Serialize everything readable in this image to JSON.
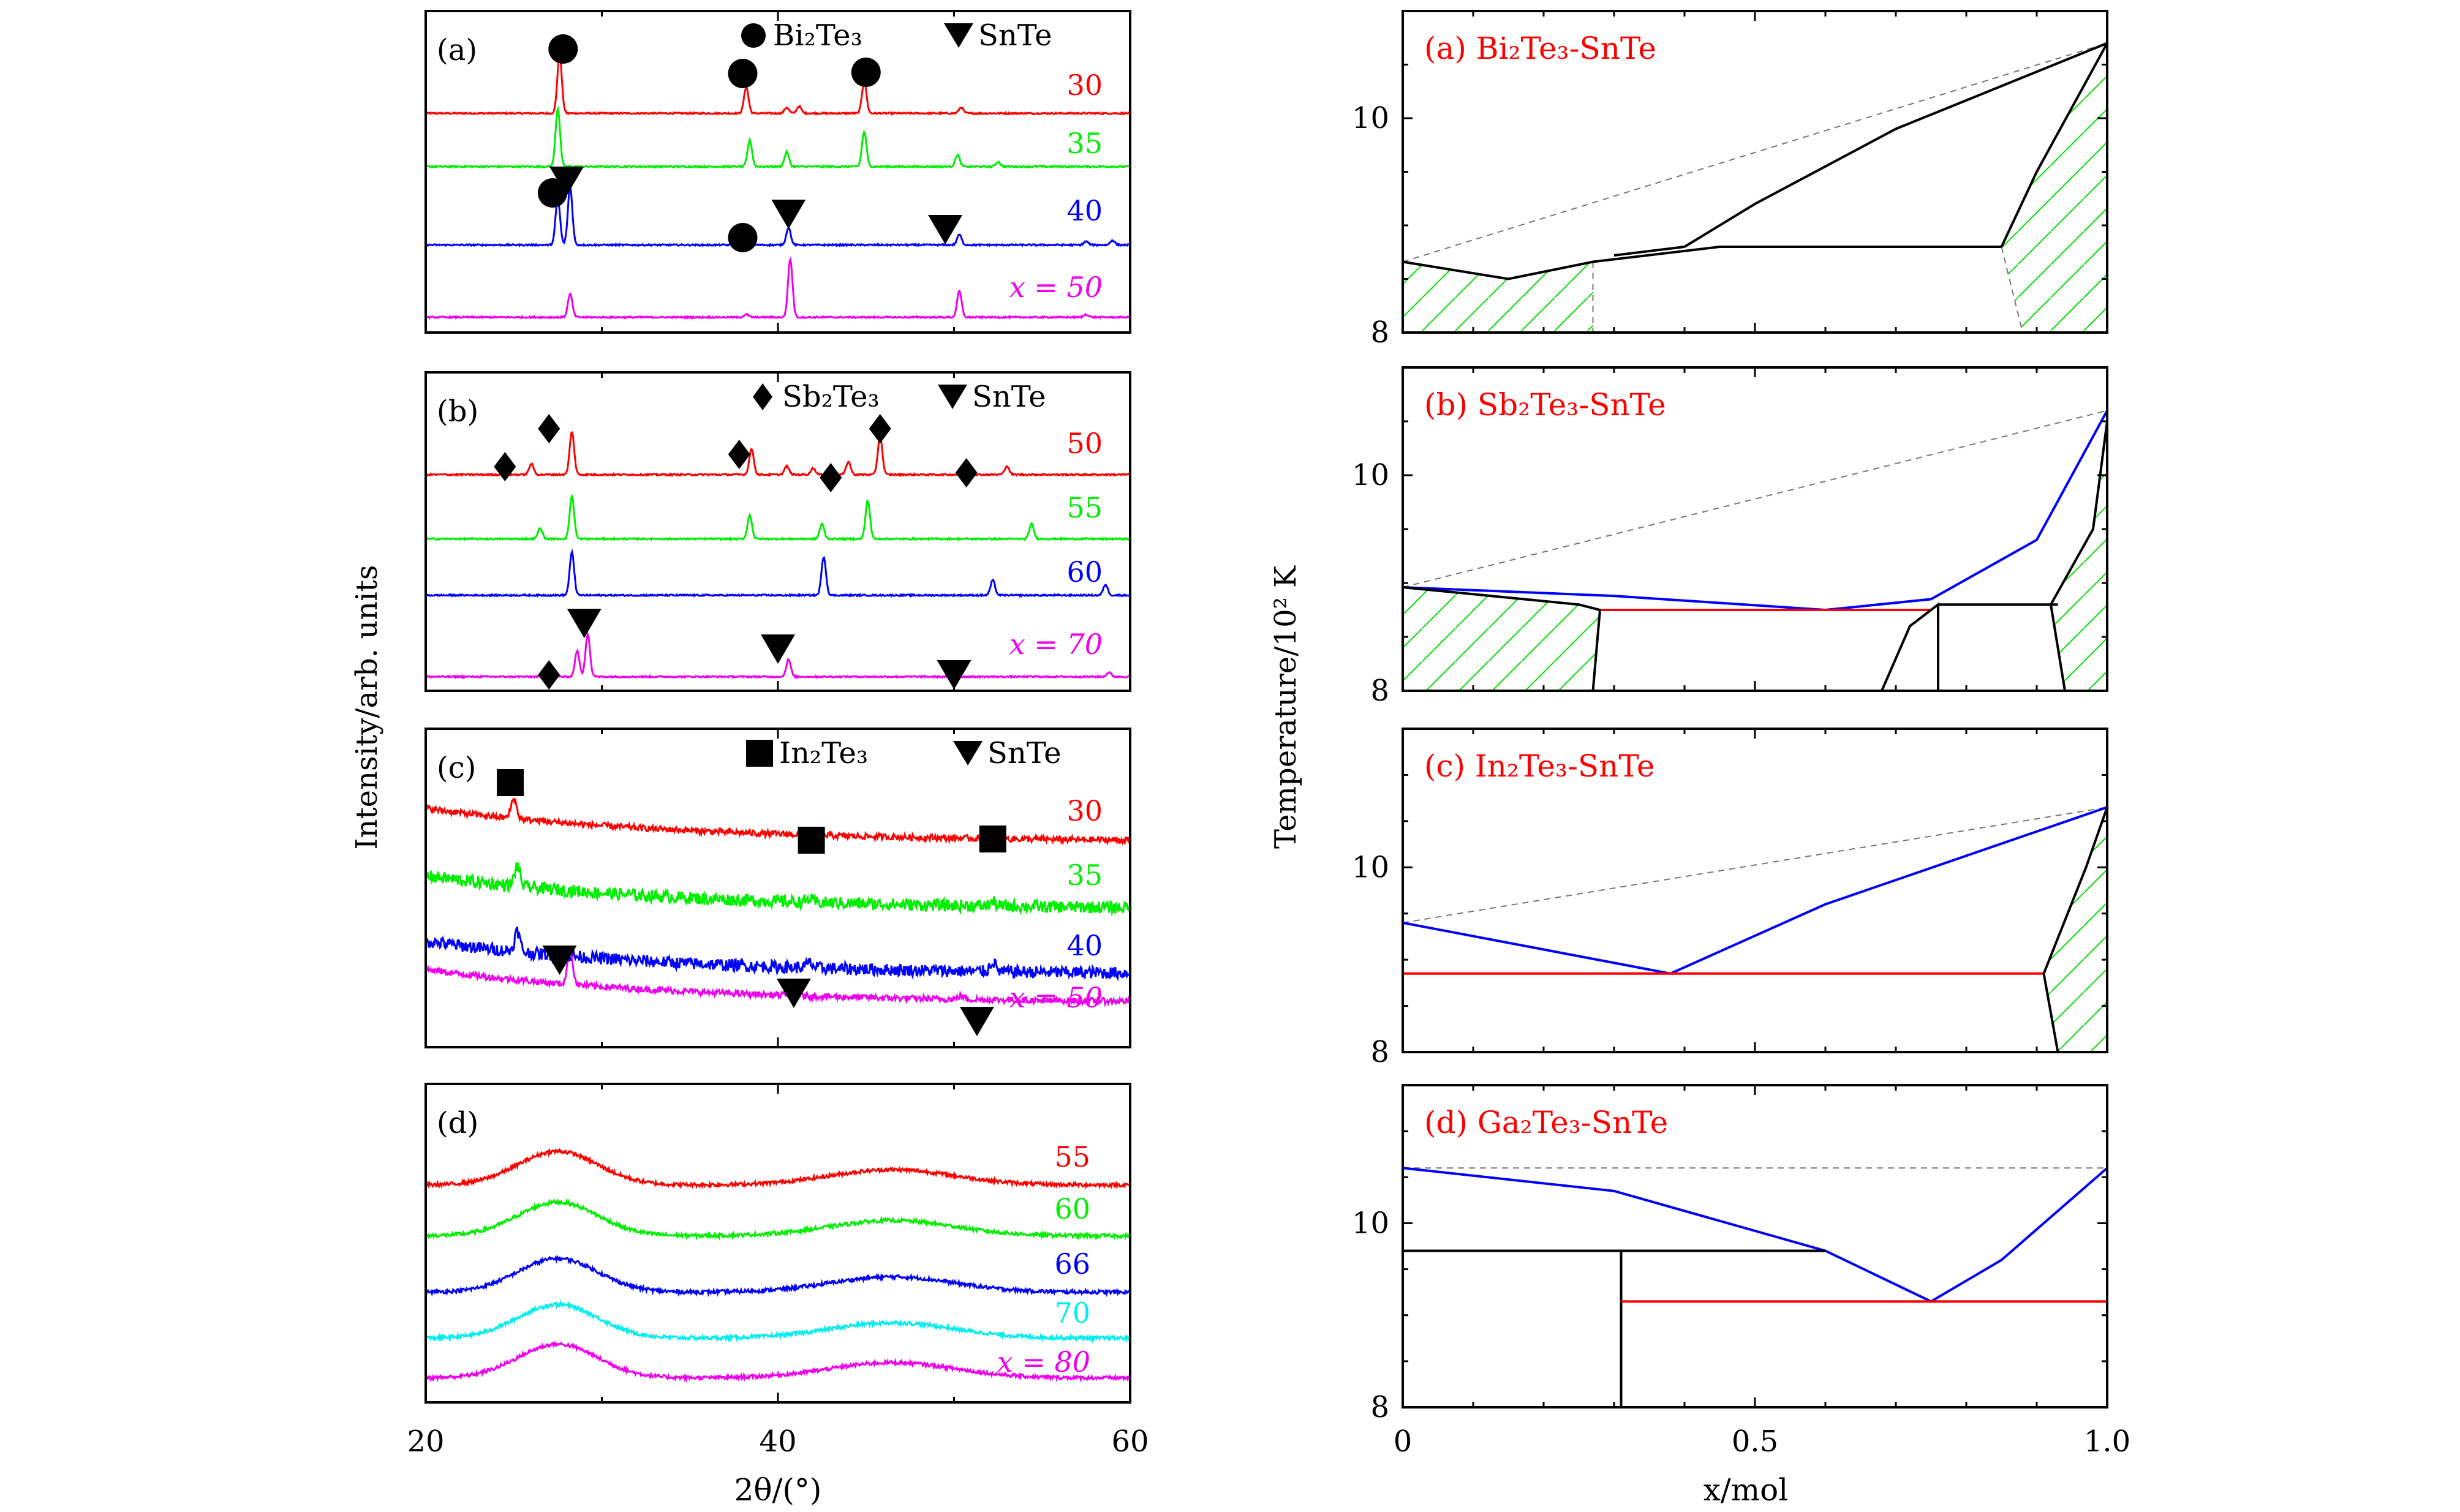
{
  "figure": {
    "xrd_ylabel": "Intensity/arb. units",
    "xrd_xlabel": "2θ/(°)",
    "phase_ylabel": "Temperature/10² K",
    "phase_xlabel": "x/mol",
    "xrd_xticks": [
      "20",
      "40",
      "60"
    ],
    "phase_xticks": [
      "0",
      "0.5",
      "1.0"
    ],
    "phase_yticks": [
      "8",
      "10"
    ]
  },
  "chart_data": [
    {
      "type": "line",
      "panel": "(a)",
      "xlim": [
        20,
        60
      ],
      "legend": [
        "Bi₂Te₃",
        "SnTe"
      ],
      "series": [
        {
          "name": "30",
          "color": "#ff0000",
          "peaks": [
            [
              27.6,
              1.0
            ],
            [
              38.2,
              0.45
            ],
            [
              44.9,
              0.55
            ],
            [
              40.5,
              0.1
            ],
            [
              41.2,
              0.12
            ],
            [
              50.4,
              0.1
            ]
          ]
        },
        {
          "name": "35",
          "color": "#00ee00",
          "peaks": [
            [
              27.5,
              1.0
            ],
            [
              38.4,
              0.45
            ],
            [
              40.5,
              0.25
            ],
            [
              44.9,
              0.6
            ],
            [
              50.2,
              0.2
            ],
            [
              52.5,
              0.08
            ]
          ]
        },
        {
          "name": "40",
          "color": "#0000ff",
          "peaks": [
            [
              27.5,
              0.8
            ],
            [
              28.2,
              1.0
            ],
            [
              40.6,
              0.3
            ],
            [
              50.3,
              0.18
            ],
            [
              57.5,
              0.06
            ],
            [
              59.0,
              0.08
            ]
          ]
        },
        {
          "name": "x = 50",
          "color": "#ee00ee",
          "peaks": [
            [
              28.2,
              0.4
            ],
            [
              40.7,
              1.0
            ],
            [
              50.3,
              0.45
            ],
            [
              38.2,
              0.05
            ],
            [
              57.5,
              0.05
            ]
          ]
        }
      ],
      "markers": [
        {
          "shape": "circle",
          "x": [
            27.8,
            38.0,
            45.0,
            27.2,
            38.0
          ]
        },
        {
          "shape": "triangle",
          "x": [
            28.0,
            40.6,
            49.5
          ]
        }
      ]
    },
    {
      "type": "line",
      "panel": "(b)",
      "xlim": [
        20,
        60
      ],
      "legend": [
        "Sb₂Te₃",
        "SnTe"
      ],
      "series": [
        {
          "name": "50",
          "color": "#ff0000",
          "peaks": [
            [
              26.0,
              0.25
            ],
            [
              28.3,
              1.0
            ],
            [
              38.5,
              0.6
            ],
            [
              40.5,
              0.2
            ],
            [
              42.0,
              0.15
            ],
            [
              44.0,
              0.3
            ],
            [
              45.8,
              0.9
            ],
            [
              53.0,
              0.2
            ]
          ]
        },
        {
          "name": "55",
          "color": "#00ee00",
          "peaks": [
            [
              26.5,
              0.25
            ],
            [
              28.3,
              1.0
            ],
            [
              38.4,
              0.55
            ],
            [
              42.5,
              0.35
            ],
            [
              45.1,
              0.9
            ],
            [
              54.4,
              0.35
            ]
          ]
        },
        {
          "name": "60",
          "color": "#0000ff",
          "peaks": [
            [
              28.3,
              1.0
            ],
            [
              42.6,
              0.9
            ],
            [
              52.2,
              0.35
            ],
            [
              58.6,
              0.25
            ]
          ]
        },
        {
          "name": "x = 70",
          "color": "#ee00ee",
          "peaks": [
            [
              28.6,
              0.6
            ],
            [
              29.2,
              1.0
            ],
            [
              40.6,
              0.4
            ],
            [
              58.8,
              0.1
            ]
          ]
        }
      ],
      "markers": [
        {
          "shape": "diamond",
          "x": [
            24.5,
            27.0,
            37.8,
            43.0,
            45.8,
            50.7,
            27.0
          ]
        },
        {
          "shape": "triangle",
          "x": [
            29.0,
            40.0,
            50.0
          ]
        }
      ]
    },
    {
      "type": "line",
      "panel": "(c)",
      "xlim": [
        20,
        60
      ],
      "legend": [
        "In₂Te₃",
        "SnTe"
      ],
      "series": [
        {
          "name": "30",
          "color": "#ff0000",
          "noise": 1,
          "peaks": [
            [
              25.0,
              0.6
            ],
            [
              41.8,
              0.1
            ],
            [
              52.2,
              0.1
            ]
          ]
        },
        {
          "name": "35",
          "color": "#00ee00",
          "noise": 2,
          "peaks": [
            [
              25.2,
              0.6
            ],
            [
              41.8,
              0.1
            ],
            [
              52.2,
              0.12
            ]
          ]
        },
        {
          "name": "40",
          "color": "#0000ff",
          "noise": 2,
          "peaks": [
            [
              25.2,
              0.6
            ],
            [
              41.8,
              0.15
            ],
            [
              52.2,
              0.3
            ]
          ]
        },
        {
          "name": "x = 50",
          "color": "#ee00ee",
          "noise": 1,
          "peaks": [
            [
              28.2,
              1.0
            ],
            [
              40.7,
              0.3
            ],
            [
              50.4,
              0.1
            ]
          ]
        }
      ],
      "markers": [
        {
          "shape": "square",
          "x": [
            24.8,
            41.9,
            52.2
          ]
        },
        {
          "shape": "triangle",
          "x": [
            27.6,
            40.9,
            51.3
          ]
        }
      ]
    },
    {
      "type": "line",
      "panel": "(d)",
      "xlim": [
        20,
        60
      ],
      "series": [
        {
          "name": "55",
          "color": "#ff0000"
        },
        {
          "name": "60",
          "color": "#00ee00"
        },
        {
          "name": "66",
          "color": "#0000ff"
        },
        {
          "name": "70",
          "color": "#00eeee"
        },
        {
          "name": "x = 80",
          "color": "#ee00ee"
        }
      ]
    },
    {
      "type": "line",
      "panel": "(a)",
      "title": "Bi₂Te₃-SnTe",
      "xlim": [
        0,
        1
      ],
      "ylim": [
        8,
        11
      ],
      "lines": [
        {
          "color": "#000000",
          "points": [
            [
              0,
              8.66
            ],
            [
              0.15,
              8.5
            ],
            [
              0.27,
              8.66
            ],
            [
              0.45,
              8.8
            ],
            [
              0.85,
              8.8
            ]
          ]
        },
        {
          "color": "#000000",
          "points": [
            [
              0.3,
              8.72
            ],
            [
              0.4,
              8.8
            ]
          ]
        },
        {
          "color": "#000000",
          "points": [
            [
              0.4,
              8.8
            ],
            [
              0.5,
              9.2
            ],
            [
              0.7,
              9.9
            ],
            [
              1.0,
              10.7
            ]
          ]
        },
        {
          "color": "#000000",
          "points": [
            [
              0.85,
              8.8
            ],
            [
              0.9,
              9.5
            ],
            [
              1.0,
              10.7
            ]
          ]
        }
      ],
      "dashed": [
        [
          [
            0,
            8.66
          ],
          [
            1.0,
            10.7
          ]
        ],
        [
          [
            0.27,
            8.66
          ],
          [
            0.27,
            8.0
          ]
        ],
        [
          [
            0.85,
            8.8
          ],
          [
            0.88,
            8.0
          ]
        ]
      ]
    },
    {
      "type": "line",
      "panel": "(b)",
      "title": "Sb₂Te₃-SnTe",
      "xlim": [
        0,
        1
      ],
      "ylim": [
        8,
        11
      ],
      "lines": [
        {
          "color": "#0000ff",
          "points": [
            [
              0,
              8.96
            ],
            [
              0.3,
              8.88
            ],
            [
              0.6,
              8.75
            ],
            [
              0.75,
              8.85
            ],
            [
              0.9,
              9.4
            ],
            [
              1.0,
              10.6
            ]
          ]
        },
        {
          "color": "#ff0000",
          "points": [
            [
              0.28,
              8.75
            ],
            [
              0.75,
              8.75
            ]
          ]
        },
        {
          "color": "#000000",
          "points": [
            [
              0,
              8.96
            ],
            [
              0.25,
              8.8
            ],
            [
              0.28,
              8.75
            ],
            [
              0.27,
              8.0
            ]
          ]
        },
        {
          "color": "#000000",
          "points": [
            [
              0.76,
              8.8
            ],
            [
              0.93,
              8.8
            ]
          ]
        },
        {
          "color": "#000000",
          "points": [
            [
              0.68,
              8.0
            ],
            [
              0.72,
              8.6
            ],
            [
              0.76,
              8.8
            ],
            [
              0.76,
              8.0
            ]
          ]
        },
        {
          "color": "#000000",
          "points": [
            [
              0.94,
              8.0
            ],
            [
              0.92,
              8.8
            ],
            [
              0.98,
              9.5
            ],
            [
              1.0,
              10.5
            ]
          ]
        }
      ],
      "dashed": [
        [
          [
            0,
            8.96
          ],
          [
            1.0,
            10.6
          ]
        ]
      ]
    },
    {
      "type": "line",
      "panel": "(c)",
      "title": "In₂Te₃-SnTe",
      "xlim": [
        0,
        1
      ],
      "ylim": [
        8,
        11.5
      ],
      "lines": [
        {
          "color": "#0000ff",
          "points": [
            [
              0,
              9.4
            ],
            [
              0.38,
              8.85
            ],
            [
              0.6,
              9.6
            ],
            [
              1.0,
              10.65
            ]
          ]
        },
        {
          "color": "#ff0000",
          "points": [
            [
              0,
              8.85
            ],
            [
              0.91,
              8.85
            ]
          ]
        },
        {
          "color": "#000000",
          "points": [
            [
              0.93,
              8.0
            ],
            [
              0.91,
              8.85
            ],
            [
              0.97,
              10.0
            ],
            [
              1.0,
              10.65
            ]
          ]
        }
      ],
      "dashed": [
        [
          [
            0,
            9.4
          ],
          [
            1.0,
            10.65
          ]
        ]
      ]
    },
    {
      "type": "line",
      "panel": "(d)",
      "title": "Ga₂Te₃-SnTe",
      "xlim": [
        0,
        1
      ],
      "ylim": [
        8,
        11.5
      ],
      "lines": [
        {
          "color": "#0000ff",
          "points": [
            [
              0,
              10.6
            ],
            [
              0.3,
              10.35
            ],
            [
              0.6,
              9.7
            ],
            [
              0.75,
              9.15
            ],
            [
              0.85,
              9.6
            ],
            [
              1.0,
              10.6
            ]
          ]
        },
        {
          "color": "#000000",
          "points": [
            [
              0,
              9.7
            ],
            [
              0.6,
              9.7
            ]
          ]
        },
        {
          "color": "#000000",
          "points": [
            [
              0.31,
              9.7
            ],
            [
              0.31,
              8.0
            ]
          ]
        },
        {
          "color": "#ff0000",
          "points": [
            [
              0.31,
              9.15
            ],
            [
              1.0,
              9.15
            ]
          ]
        }
      ],
      "dashed": [
        [
          [
            0,
            10.6
          ],
          [
            1.0,
            10.6
          ]
        ]
      ]
    }
  ]
}
